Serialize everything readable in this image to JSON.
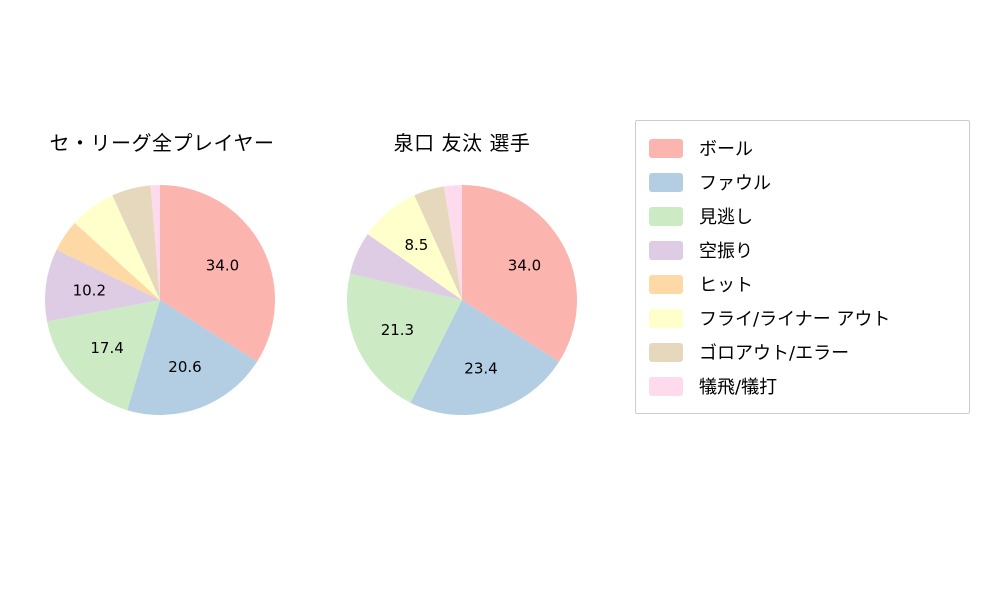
{
  "colors": [
    "#fbb4ae",
    "#b3cde3",
    "#ccebc5",
    "#decbe4",
    "#fed9a6",
    "#ffffcc",
    "#e5d8bd",
    "#fddaec"
  ],
  "chart_data": [
    {
      "type": "pie",
      "title": "セ・リーグ全プレイヤー",
      "labels": [
        "ボール",
        "ファウル",
        "見逃し",
        "空振り",
        "ヒット",
        "フライ/ライナー アウト",
        "ゴロアウト/エラー",
        "犠飛/犠打"
      ],
      "values": [
        34.0,
        20.6,
        17.4,
        10.2,
        4.5,
        6.5,
        5.5,
        1.3
      ],
      "value_labels_shown": [
        true,
        true,
        true,
        true,
        false,
        false,
        false,
        false
      ],
      "start_angle_deg": 90,
      "direction": "clockwise",
      "legend_position": "right"
    },
    {
      "type": "pie",
      "title": "泉口 友汰  選手",
      "labels": [
        "ボール",
        "ファウル",
        "見逃し",
        "空振り",
        "ヒット",
        "フライ/ライナー アウト",
        "ゴロアウト/エラー",
        "犠飛/犠打"
      ],
      "values": [
        34.0,
        23.4,
        21.3,
        6.0,
        0.0,
        8.5,
        4.3,
        2.5
      ],
      "value_labels_shown": [
        true,
        true,
        true,
        false,
        false,
        true,
        false,
        false
      ],
      "start_angle_deg": 90,
      "direction": "clockwise",
      "legend_position": "right"
    }
  ],
  "legend": {
    "border_color": "#cccccc",
    "items": [
      {
        "label": "ボール",
        "color": "#fbb4ae"
      },
      {
        "label": "ファウル",
        "color": "#b3cde3"
      },
      {
        "label": "見逃し",
        "color": "#ccebc5"
      },
      {
        "label": "空振り",
        "color": "#decbe4"
      },
      {
        "label": "ヒット",
        "color": "#fed9a6"
      },
      {
        "label": "フライ/ライナー アウト",
        "color": "#ffffcc"
      },
      {
        "label": "ゴロアウト/エラー",
        "color": "#e5d8bd"
      },
      {
        "label": "犠飛/犠打",
        "color": "#fddaec"
      }
    ]
  }
}
